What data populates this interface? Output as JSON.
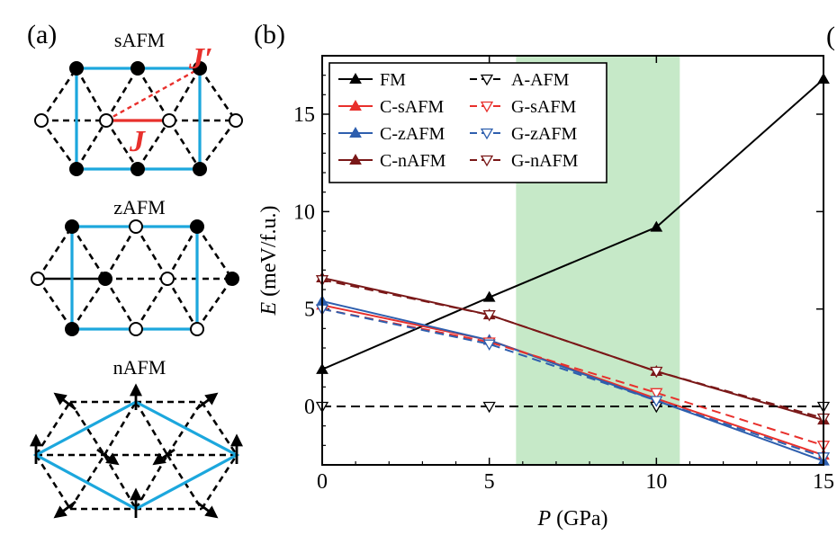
{
  "panel_a": {
    "label": "(a)",
    "lattices": [
      {
        "name": "sAFM"
      },
      {
        "name": "zAFM"
      },
      {
        "name": "nAFM"
      }
    ],
    "j_label": "J",
    "j_prime_label": "J′",
    "colors": {
      "bond": "#1ca7dd",
      "exchange": "#e8302c"
    }
  },
  "panel_b": {
    "label": "(b)"
  },
  "panel_c_fragment": "(",
  "chart_data": {
    "type": "line",
    "title": "",
    "xlabel_italic": "P",
    "xlabel_unit": " (GPa)",
    "ylabel_italic": "E",
    "ylabel_unit": " (meV/f.u.)",
    "xlim": [
      0,
      15
    ],
    "ylim": [
      -3,
      18
    ],
    "xticks": [
      0,
      5,
      10,
      15
    ],
    "yticks": [
      0,
      5,
      10,
      15
    ],
    "highlight_band": {
      "x_from": 5.8,
      "x_to": 10.7,
      "color": "#c6e9c8"
    },
    "x": [
      0,
      5,
      10,
      15
    ],
    "legend_position": "top-left",
    "series": [
      {
        "name": "FM",
        "values": [
          1.9,
          5.6,
          9.2,
          16.8
        ],
        "color": "#000000",
        "dash": "solid",
        "marker": "up-filled"
      },
      {
        "name": "C-sAFM",
        "values": [
          5.2,
          3.4,
          0.4,
          -2.5
        ],
        "color": "#e8302c",
        "dash": "solid",
        "marker": "up-filled"
      },
      {
        "name": "C-zAFM",
        "values": [
          5.4,
          3.4,
          0.3,
          -2.8
        ],
        "color": "#2e5fae",
        "dash": "solid",
        "marker": "up-filled"
      },
      {
        "name": "C-nAFM",
        "values": [
          6.6,
          4.7,
          1.8,
          -0.7
        ],
        "color": "#7a1818",
        "dash": "solid",
        "marker": "up-filled"
      },
      {
        "name": "A-AFM",
        "values": [
          0,
          0,
          0,
          0
        ],
        "color": "#000000",
        "dash": "dashed",
        "marker": "down-open"
      },
      {
        "name": "G-sAFM",
        "values": [
          5.0,
          3.3,
          0.7,
          -2.0
        ],
        "color": "#e8302c",
        "dash": "dashed",
        "marker": "down-open"
      },
      {
        "name": "G-zAFM",
        "values": [
          5.0,
          3.2,
          0.3,
          -2.6
        ],
        "color": "#2e5fae",
        "dash": "dashed",
        "marker": "down-open"
      },
      {
        "name": "G-nAFM",
        "values": [
          6.5,
          4.7,
          1.8,
          -0.6
        ],
        "color": "#7a1818",
        "dash": "dashed",
        "marker": "down-open"
      }
    ]
  }
}
